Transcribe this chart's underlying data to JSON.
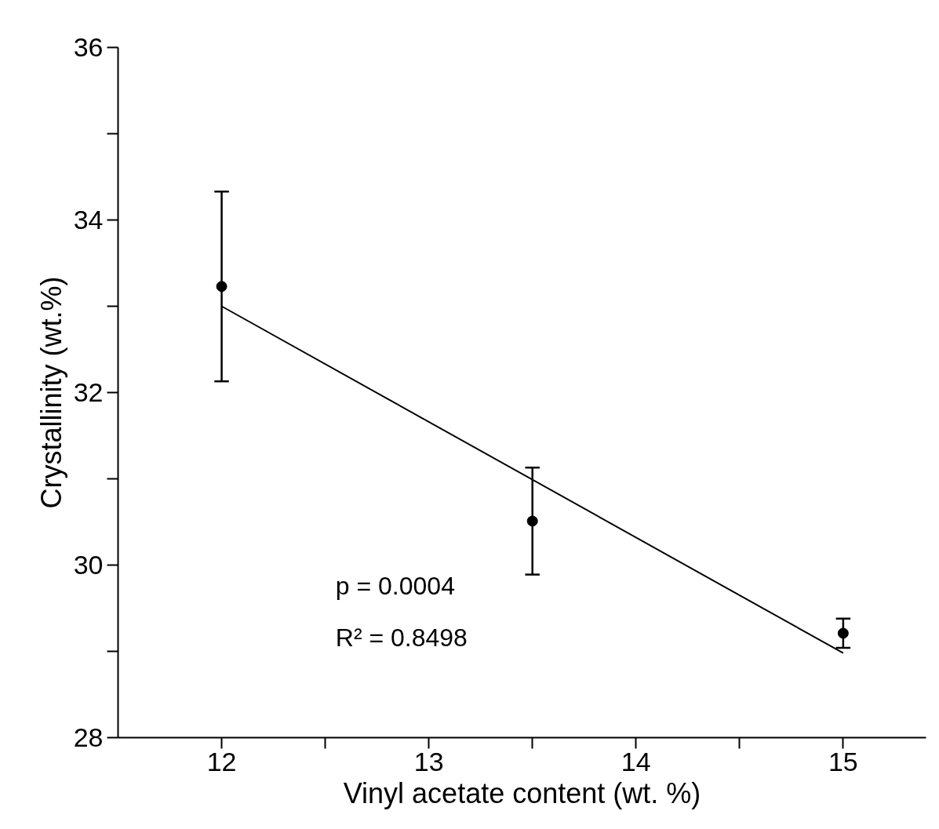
{
  "chart_data": {
    "type": "scatter",
    "xlabel": "Vinyl acetate content (wt. %)",
    "ylabel": "Crystallinity (wt.%)",
    "xlim": [
      11.5,
      15.4
    ],
    "ylim": [
      28,
      36
    ],
    "xticks": [
      12,
      {
        "value": 12.5,
        "label": null
      },
      13,
      {
        "value": 13.5,
        "label": null
      },
      14,
      {
        "value": 14.5,
        "label": null
      },
      15
    ],
    "yticks": [
      28,
      {
        "value": 29,
        "label": null
      },
      30,
      {
        "value": 31,
        "label": null
      },
      32,
      {
        "value": 33,
        "label": null
      },
      34,
      {
        "value": 35,
        "label": null
      },
      36
    ],
    "grid": false,
    "marker": "circle",
    "series": [
      {
        "color": "#000000",
        "x": [
          12,
          13.5,
          15
        ],
        "values": [
          33.23,
          30.51,
          29.21
        ],
        "errors": [
          1.1,
          0.62,
          0.17
        ]
      },
      {
        "type": "line",
        "color": "#000000",
        "x": [
          12,
          15
        ],
        "values": [
          33.0,
          28.98
        ],
        "line_style": "solid",
        "marker": "none"
      }
    ],
    "annotations": [
      "p = 0.0004",
      "R² = 0.8498"
    ]
  }
}
